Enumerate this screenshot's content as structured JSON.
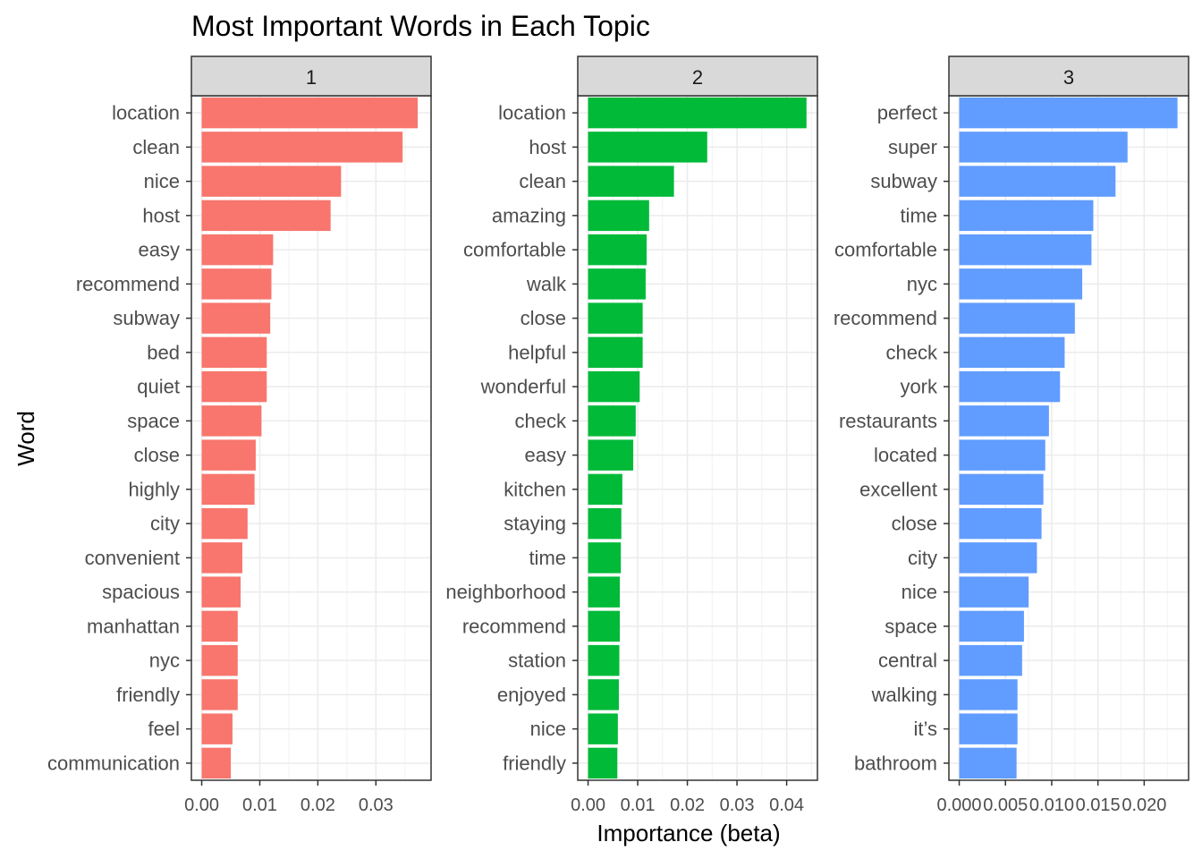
{
  "chart_data": {
    "type": "bar",
    "orientation": "horizontal",
    "title": "Most Important Words in Each Topic",
    "xlabel": "Importance (beta)",
    "ylabel": "Word",
    "grid": true,
    "facets": [
      {
        "label": "1",
        "color": "#F8766D",
        "xlim": [
          0,
          0.0395
        ],
        "xticks": [
          0,
          0.01,
          0.02,
          0.03
        ],
        "xtick_labels": [
          "0.00",
          "0.01",
          "0.02",
          "0.03"
        ],
        "categories": [
          "location",
          "clean",
          "nice",
          "host",
          "easy",
          "recommend",
          "subway",
          "bed",
          "quiet",
          "space",
          "close",
          "highly",
          "city",
          "convenient",
          "spacious",
          "manhattan",
          "nyc",
          "friendly",
          "feel",
          "communication"
        ],
        "values": [
          0.0372,
          0.0346,
          0.024,
          0.0222,
          0.0123,
          0.012,
          0.0118,
          0.0112,
          0.0112,
          0.0103,
          0.0093,
          0.0091,
          0.0079,
          0.007,
          0.0067,
          0.0062,
          0.0062,
          0.0062,
          0.0053,
          0.005
        ]
      },
      {
        "label": "2",
        "color": "#00BA38",
        "xlim": [
          0,
          0.0462
        ],
        "xticks": [
          0,
          0.01,
          0.02,
          0.03,
          0.04
        ],
        "xtick_labels": [
          "0.00",
          "0.01",
          "0.02",
          "0.03",
          "0.04"
        ],
        "categories": [
          "location",
          "host",
          "clean",
          "amazing",
          "comfortable",
          "walk",
          "close",
          "helpful",
          "wonderful",
          "check",
          "easy",
          "kitchen",
          "staying",
          "time",
          "neighborhood",
          "recommend",
          "station",
          "enjoyed",
          "nice",
          "friendly"
        ],
        "values": [
          0.044,
          0.024,
          0.0173,
          0.0123,
          0.0118,
          0.0116,
          0.011,
          0.011,
          0.0104,
          0.0096,
          0.0091,
          0.0069,
          0.0067,
          0.0066,
          0.0064,
          0.0064,
          0.0063,
          0.0062,
          0.006,
          0.0059
        ]
      },
      {
        "label": "3",
        "color": "#619CFF",
        "xlim": [
          0,
          0.0248
        ],
        "xticks": [
          0,
          0.005,
          0.01,
          0.015,
          0.02
        ],
        "xtick_labels": [
          "0.000",
          "0.005",
          "0.010",
          "0.015",
          "0.020"
        ],
        "categories": [
          "perfect",
          "super",
          "subway",
          "time",
          "comfortable",
          "nyc",
          "recommend",
          "check",
          "york",
          "restaurants",
          "located",
          "excellent",
          "close",
          "city",
          "nice",
          "space",
          "central",
          "walking",
          "it’s",
          "bathroom"
        ],
        "values": [
          0.0236,
          0.0182,
          0.0169,
          0.0145,
          0.0143,
          0.0133,
          0.0125,
          0.0114,
          0.0109,
          0.0097,
          0.0093,
          0.0091,
          0.0089,
          0.0084,
          0.0075,
          0.007,
          0.0068,
          0.0063,
          0.0063,
          0.0062
        ]
      }
    ]
  }
}
